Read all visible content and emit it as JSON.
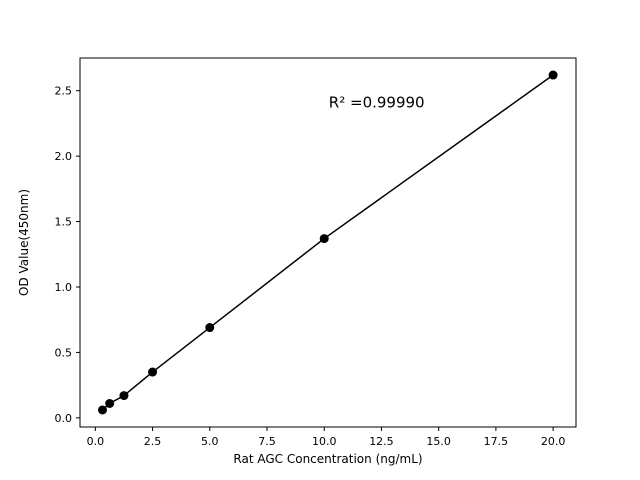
{
  "chart_data": {
    "type": "scatter",
    "title": "",
    "xlabel": "Rat AGC Concentration (ng/mL)",
    "ylabel": "OD Value(450nm)",
    "annotation": {
      "text": "R² =0.99990",
      "x": 10.2,
      "y": 2.37
    },
    "x": [
      0.313,
      0.625,
      1.25,
      2.5,
      5,
      10,
      20
    ],
    "y": [
      0.06,
      0.11,
      0.17,
      0.35,
      0.69,
      1.37,
      2.62
    ],
    "line_style": "straight-fit-through-points",
    "xlim": [
      -0.67,
      21.0
    ],
    "ylim": [
      -0.07,
      2.75
    ],
    "xticks": {
      "values": [
        0,
        2.5,
        5,
        7.5,
        10,
        12.5,
        15,
        17.5,
        20
      ],
      "labels": [
        "0.0",
        "2.5",
        "5.0",
        "7.5",
        "10.0",
        "12.5",
        "15.0",
        "17.5",
        "20.0"
      ]
    },
    "yticks": {
      "values": [
        0,
        0.5,
        1,
        1.5,
        2,
        2.5
      ],
      "labels": [
        "0.0",
        "0.5",
        "1.0",
        "1.5",
        "2.0",
        "2.5"
      ]
    },
    "grid": false,
    "legend": null,
    "marker": {
      "shape": "circle",
      "radius": 4.5
    },
    "colors": {
      "marker": "#000000",
      "line": "#000000",
      "axis": "#000000",
      "text": "#000000",
      "background": "#ffffff"
    }
  }
}
